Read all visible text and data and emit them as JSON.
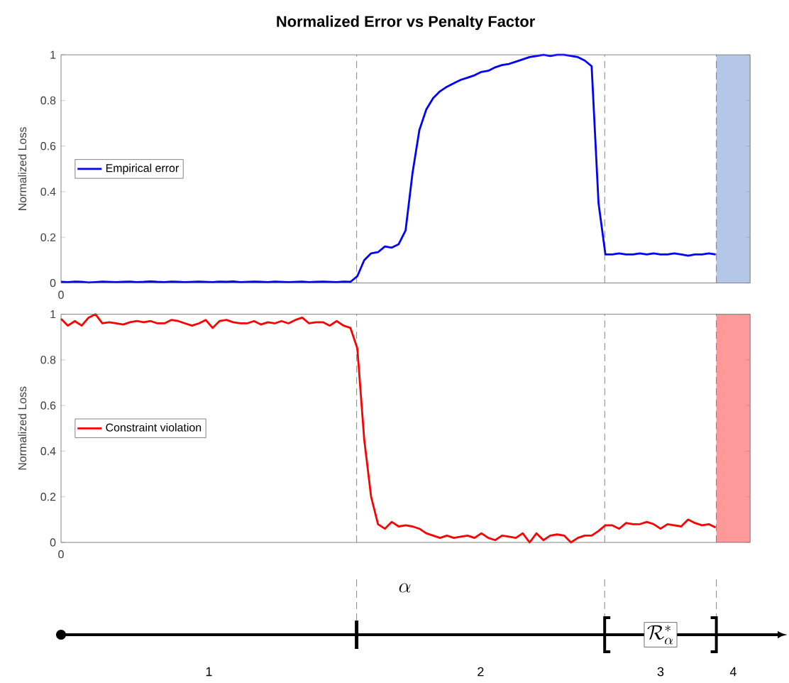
{
  "chart_data": [
    {
      "type": "line",
      "title": "Normalized Error vs Penalty Factor",
      "ylabel": "Normalized Loss",
      "annotations": [
        "0"
      ],
      "ylim": [
        0,
        1
      ],
      "yticks": [
        0,
        0.2,
        0.4,
        0.6,
        0.8,
        1
      ],
      "legend": "left",
      "grid": false,
      "categories": [
        null,
        null,
        null,
        null,
        null,
        null,
        null,
        null,
        null,
        null,
        null,
        null,
        null,
        null,
        null,
        null,
        null,
        null,
        null,
        null,
        null,
        null,
        null,
        null,
        null,
        null,
        null,
        null,
        null,
        null,
        null,
        null,
        null,
        null,
        null,
        null,
        null,
        null,
        null,
        null,
        null,
        null,
        null,
        null,
        null,
        null,
        null,
        null,
        null,
        null,
        null,
        null,
        null,
        null,
        null,
        null,
        null,
        null,
        null,
        null,
        null,
        null,
        null,
        null,
        null,
        null,
        null,
        null,
        null,
        null,
        null,
        null,
        null,
        null,
        null,
        null,
        null,
        null,
        null,
        null,
        null,
        null,
        null,
        null,
        null,
        null,
        null,
        null,
        null,
        null,
        null,
        null,
        null,
        null,
        null,
        null
      ],
      "series": [
        {
          "name": "Empirical error",
          "color": "#0000ff",
          "values": [
            0.005,
            0.004,
            0.006,
            0.005,
            0.002,
            0.004,
            0.006,
            0.005,
            0.004,
            0.005,
            0.006,
            0.004,
            0.005,
            0.007,
            0.005,
            0.004,
            0.006,
            0.005,
            0.004,
            0.005,
            0.006,
            0.005,
            0.004,
            0.006,
            0.005,
            0.007,
            0.004,
            0.005,
            0.006,
            0.005,
            0.004,
            0.006,
            0.005,
            0.004,
            0.005,
            0.006,
            0.004,
            0.005,
            0.006,
            0.005,
            0.004,
            0.006,
            0.005,
            0.03,
            0.1,
            0.13,
            0.135,
            0.16,
            0.155,
            0.17,
            0.23,
            0.48,
            0.67,
            0.76,
            0.81,
            0.84,
            0.86,
            0.875,
            0.89,
            0.9,
            0.91,
            0.925,
            0.93,
            0.945,
            0.955,
            0.96,
            0.97,
            0.98,
            0.99,
            0.995,
            1.0,
            0.995,
            1.0,
            1.0,
            0.995,
            0.99,
            0.975,
            0.95,
            0.35,
            0.125,
            0.125,
            0.13,
            0.125,
            0.125,
            0.13,
            0.125,
            0.13,
            0.125,
            0.125,
            0.13,
            0.125,
            0.12,
            0.125,
            0.125,
            0.13,
            0.125
          ]
        }
      ]
    },
    {
      "type": "line",
      "ylabel": "Normalized Loss",
      "ylim": [
        0,
        1
      ],
      "yticks": [
        0,
        0.2,
        0.4,
        0.6,
        0.8,
        1
      ],
      "legend": "left",
      "grid": false,
      "categories": [
        null,
        null,
        null,
        null,
        null,
        null,
        null,
        null,
        null,
        null,
        null,
        null,
        null,
        null,
        null,
        null,
        null,
        null,
        null,
        null,
        null,
        null,
        null,
        null,
        null,
        null,
        null,
        null,
        null,
        null,
        null,
        null,
        null,
        null,
        null,
        null,
        null,
        null,
        null,
        null,
        null,
        null,
        null,
        null,
        null,
        null,
        null,
        null,
        null,
        null,
        null,
        null,
        null,
        null,
        null,
        null,
        null,
        null,
        null,
        null,
        null,
        null,
        null,
        null,
        null,
        null,
        null,
        null,
        null,
        null,
        null,
        null,
        null,
        null,
        null,
        null,
        null,
        null,
        null,
        null,
        null,
        null,
        null,
        null,
        null,
        null,
        null,
        null,
        null,
        null,
        null,
        null,
        null,
        null,
        null,
        null
      ],
      "series": [
        {
          "name": "Constraint violation",
          "color": "#ff0000",
          "values": [
            0.98,
            0.95,
            0.97,
            0.95,
            0.985,
            1.0,
            0.96,
            0.965,
            0.96,
            0.955,
            0.965,
            0.97,
            0.965,
            0.97,
            0.96,
            0.96,
            0.975,
            0.97,
            0.96,
            0.95,
            0.96,
            0.975,
            0.94,
            0.97,
            0.975,
            0.965,
            0.96,
            0.96,
            0.97,
            0.955,
            0.965,
            0.96,
            0.97,
            0.96,
            0.975,
            0.985,
            0.96,
            0.965,
            0.965,
            0.95,
            0.97,
            0.95,
            0.94,
            0.85,
            0.45,
            0.2,
            0.08,
            0.06,
            0.09,
            0.07,
            0.075,
            0.07,
            0.06,
            0.04,
            0.03,
            0.02,
            0.03,
            0.02,
            0.025,
            0.03,
            0.02,
            0.04,
            0.02,
            0.01,
            0.03,
            0.025,
            0.02,
            0.04,
            0.0,
            0.04,
            0.01,
            0.03,
            0.035,
            0.03,
            0.0,
            0.02,
            0.03,
            0.03,
            0.05,
            0.075,
            0.075,
            0.06,
            0.085,
            0.08,
            0.08,
            0.09,
            0.08,
            0.06,
            0.08,
            0.075,
            0.07,
            0.1,
            0.085,
            0.075,
            0.08,
            0.065
          ]
        }
      ],
      "annotations": [
        "\\alpha",
        "\\mathcal{R}^{*}_{\\alpha}",
        "1",
        "2",
        "3",
        "4",
        "0"
      ]
    }
  ]
}
